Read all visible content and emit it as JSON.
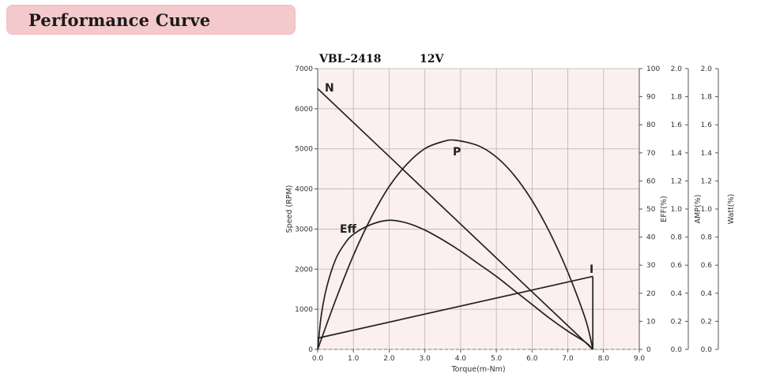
{
  "header": {
    "title": "Performance Curve"
  },
  "chart_data": {
    "type": "line",
    "model": "VBL–2418",
    "voltage": "12V",
    "xlabel": "Torque(m-Nm)",
    "x_ticks": [
      "0.0",
      "1.0",
      "2.0",
      "3.0",
      "4.0",
      "5.0",
      "6.0",
      "7.0",
      "8.0",
      "9.0"
    ],
    "xlim": [
      0,
      9
    ],
    "axes": {
      "speed": {
        "label": "Speed (RPM)",
        "ticks": [
          "0",
          "1000",
          "2000",
          "3000",
          "4000",
          "5000",
          "6000",
          "7000"
        ],
        "range": [
          0,
          7000
        ]
      },
      "eff": {
        "label": "EFF(%)",
        "ticks": [
          "0",
          "10",
          "20",
          "30",
          "40",
          "50",
          "60",
          "70",
          "80",
          "90",
          "100"
        ],
        "range": [
          0,
          100
        ]
      },
      "amp": {
        "label": "AMP(%)",
        "ticks": [
          "0.0",
          "0.2",
          "0.4",
          "0.6",
          "0.8",
          "1.0",
          "1.2",
          "1.4",
          "1.6",
          "1.8",
          "2.0"
        ],
        "range": [
          0,
          2.0
        ]
      },
      "watt": {
        "label": "Watt(%)",
        "ticks": [
          "0.0",
          "0.2",
          "0.4",
          "0.6",
          "0.8",
          "1.0",
          "1.2",
          "1.4",
          "1.6",
          "1.8",
          "2.0"
        ],
        "range": [
          0,
          2.0
        ]
      }
    },
    "grid": true,
    "series": [
      {
        "name": "N",
        "axis": "speed",
        "x": [
          0.0,
          7.7
        ],
        "y": [
          6500,
          0
        ]
      },
      {
        "name": "P",
        "axis": "watt",
        "x": [
          0.0,
          0.5,
          1.0,
          1.5,
          2.0,
          2.5,
          3.0,
          3.5,
          3.85,
          4.5,
          5.0,
          5.5,
          6.0,
          6.5,
          7.0,
          7.5,
          7.7
        ],
        "y": [
          0.0,
          0.35,
          0.67,
          0.94,
          1.16,
          1.32,
          1.43,
          1.48,
          1.49,
          1.45,
          1.37,
          1.24,
          1.06,
          0.83,
          0.55,
          0.21,
          0.0
        ]
      },
      {
        "name": "Eff",
        "axis": "eff",
        "x": [
          0.0,
          0.1,
          0.25,
          0.5,
          0.75,
          1.0,
          1.5,
          2.0,
          2.5,
          3.0,
          3.5,
          4.0,
          4.5,
          5.0,
          5.5,
          6.0,
          6.5,
          7.0,
          7.5,
          7.7
        ],
        "y": [
          0.0,
          12,
          22,
          32,
          37.5,
          41,
          44.5,
          46,
          45,
          42.5,
          39,
          35,
          30.5,
          26,
          21,
          16,
          11,
          6.5,
          2.5,
          0.0
        ]
      },
      {
        "name": "I",
        "axis": "amp",
        "x": [
          0.0,
          7.7
        ],
        "y": [
          0.08,
          0.52
        ]
      }
    ],
    "curve_labels": [
      "N",
      "P",
      "Eff",
      "I"
    ]
  }
}
